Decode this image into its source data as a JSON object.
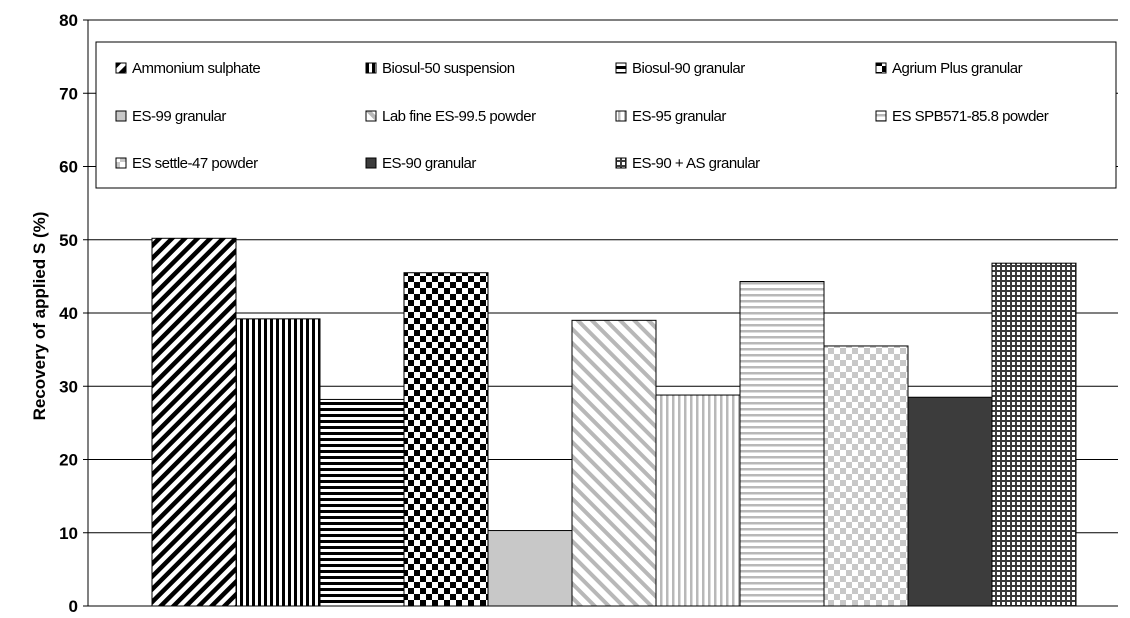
{
  "chart_data": {
    "type": "bar",
    "title": "",
    "xlabel": "",
    "ylabel": "Recovery of applied S (%)",
    "ylim": [
      0,
      80
    ],
    "yticks": [
      0,
      10,
      20,
      30,
      40,
      50,
      60,
      70,
      80
    ],
    "grid": true,
    "legend_position": "top",
    "categories": [
      "Ammonium sulphate",
      "Biosul-50 suspension",
      "Biosul-90 granular",
      "Agrium Plus granular",
      "ES-99 granular",
      "Lab fine ES-99.5 powder",
      "ES-95 granular",
      "ES SPB571-85.8 powder",
      "ES settle-47 powder",
      "ES-90 granular",
      "ES-90 + AS granular"
    ],
    "values": [
      50.2,
      39.2,
      28.2,
      45.5,
      10.3,
      39.0,
      28.8,
      44.3,
      35.5,
      28.5,
      46.8
    ],
    "patterns": [
      "diag-bold",
      "vert-bold",
      "horiz-bold",
      "checker-bold",
      "solid-light-gray",
      "diag-light",
      "vert-light",
      "horiz-light",
      "checker-light",
      "solid-dark-gray",
      "grid-dark"
    ],
    "colors": {
      "dark_fill": "#3c3c3c",
      "light_fill": "#c8c8c8",
      "mid_line": "#b8b8b8",
      "axis": "#000000",
      "grid": "#000000"
    }
  }
}
